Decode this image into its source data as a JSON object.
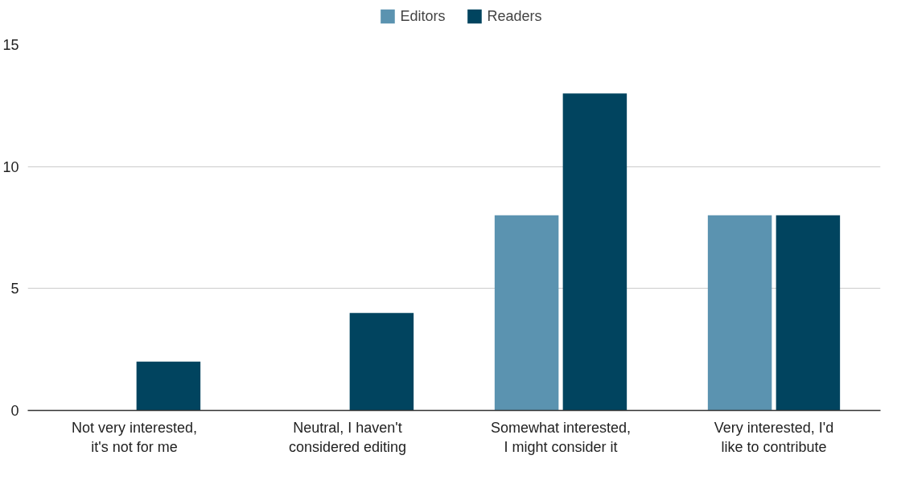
{
  "chart_data": {
    "type": "bar",
    "categories": [
      "Not very interested,\nit's not for me",
      "Neutral, I haven't\nconsidered editing",
      "Somewhat interested,\nI might consider it",
      "Very interested, I'd\nlike to contribute"
    ],
    "series": [
      {
        "name": "Editors",
        "color": "#5b93b0",
        "values": [
          0,
          0,
          8,
          8
        ]
      },
      {
        "name": "Readers",
        "color": "#01445f",
        "values": [
          2,
          4,
          13,
          8
        ]
      }
    ],
    "ylim": [
      0,
      15
    ],
    "yticks": [
      0,
      5,
      10,
      15
    ],
    "grid": "y",
    "legend": "top"
  }
}
